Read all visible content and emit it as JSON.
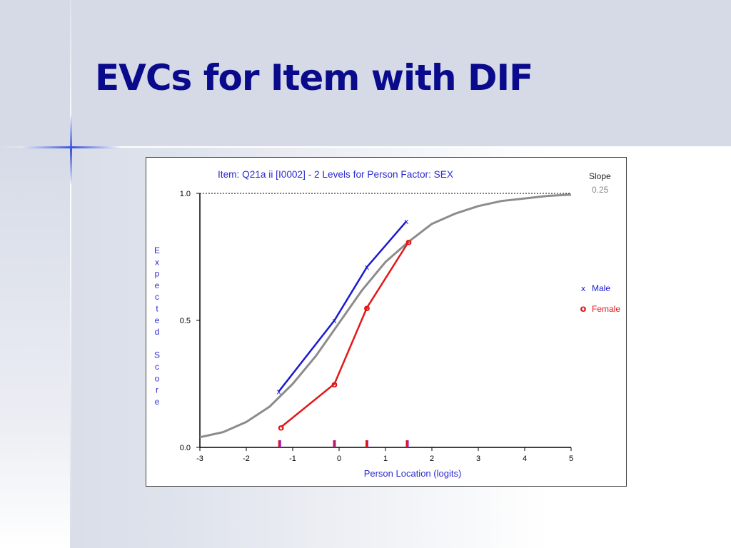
{
  "slide": {
    "title": "EVCs for Item with DIF"
  },
  "colors": {
    "title": "#0a0a8c",
    "male": "#1a1ad0",
    "female": "#e01818",
    "model_curve": "#8c8c8c",
    "axis_text": "#2a2ad0"
  },
  "chart_data": {
    "type": "line",
    "title": "Item: Q21a ii [I0002] - 2 Levels for Person Factor: SEX",
    "xlabel": "Person Location (logits)",
    "ylabel": "Expected Score",
    "xlim": [
      -3,
      5
    ],
    "ylim": [
      0,
      1
    ],
    "x_ticks": [
      "-3",
      "-2",
      "-1",
      "0",
      "1",
      "2",
      "3",
      "4",
      "5"
    ],
    "y_ticks": [
      "0.0",
      "0.5",
      "1.0"
    ],
    "slope_label": "Slope",
    "slope_value": "0.25",
    "reference_line_y": 1.0,
    "legend_position": "right",
    "model_curve": {
      "x": [
        -3,
        -2.5,
        -2,
        -1.5,
        -1,
        -0.5,
        0,
        0.5,
        1,
        1.5,
        2,
        2.5,
        3,
        3.5,
        4,
        4.5,
        5
      ],
      "y": [
        0.04,
        0.06,
        0.1,
        0.16,
        0.25,
        0.36,
        0.49,
        0.62,
        0.73,
        0.81,
        0.88,
        0.92,
        0.95,
        0.97,
        0.98,
        0.99,
        0.995
      ]
    },
    "series": [
      {
        "name": "Male",
        "marker": "×",
        "marker_label": "x",
        "x": [
          -1.3,
          -0.1,
          0.6,
          1.45
        ],
        "y": [
          0.22,
          0.5,
          0.71,
          0.89
        ]
      },
      {
        "name": "Female",
        "marker": "o",
        "marker_label": "o",
        "x": [
          -1.25,
          -0.1,
          0.6,
          1.5
        ],
        "y": [
          0.08,
          0.25,
          0.55,
          0.81
        ]
      }
    ],
    "rug_x": [
      -1.28,
      -0.1,
      0.6,
      1.47
    ]
  }
}
